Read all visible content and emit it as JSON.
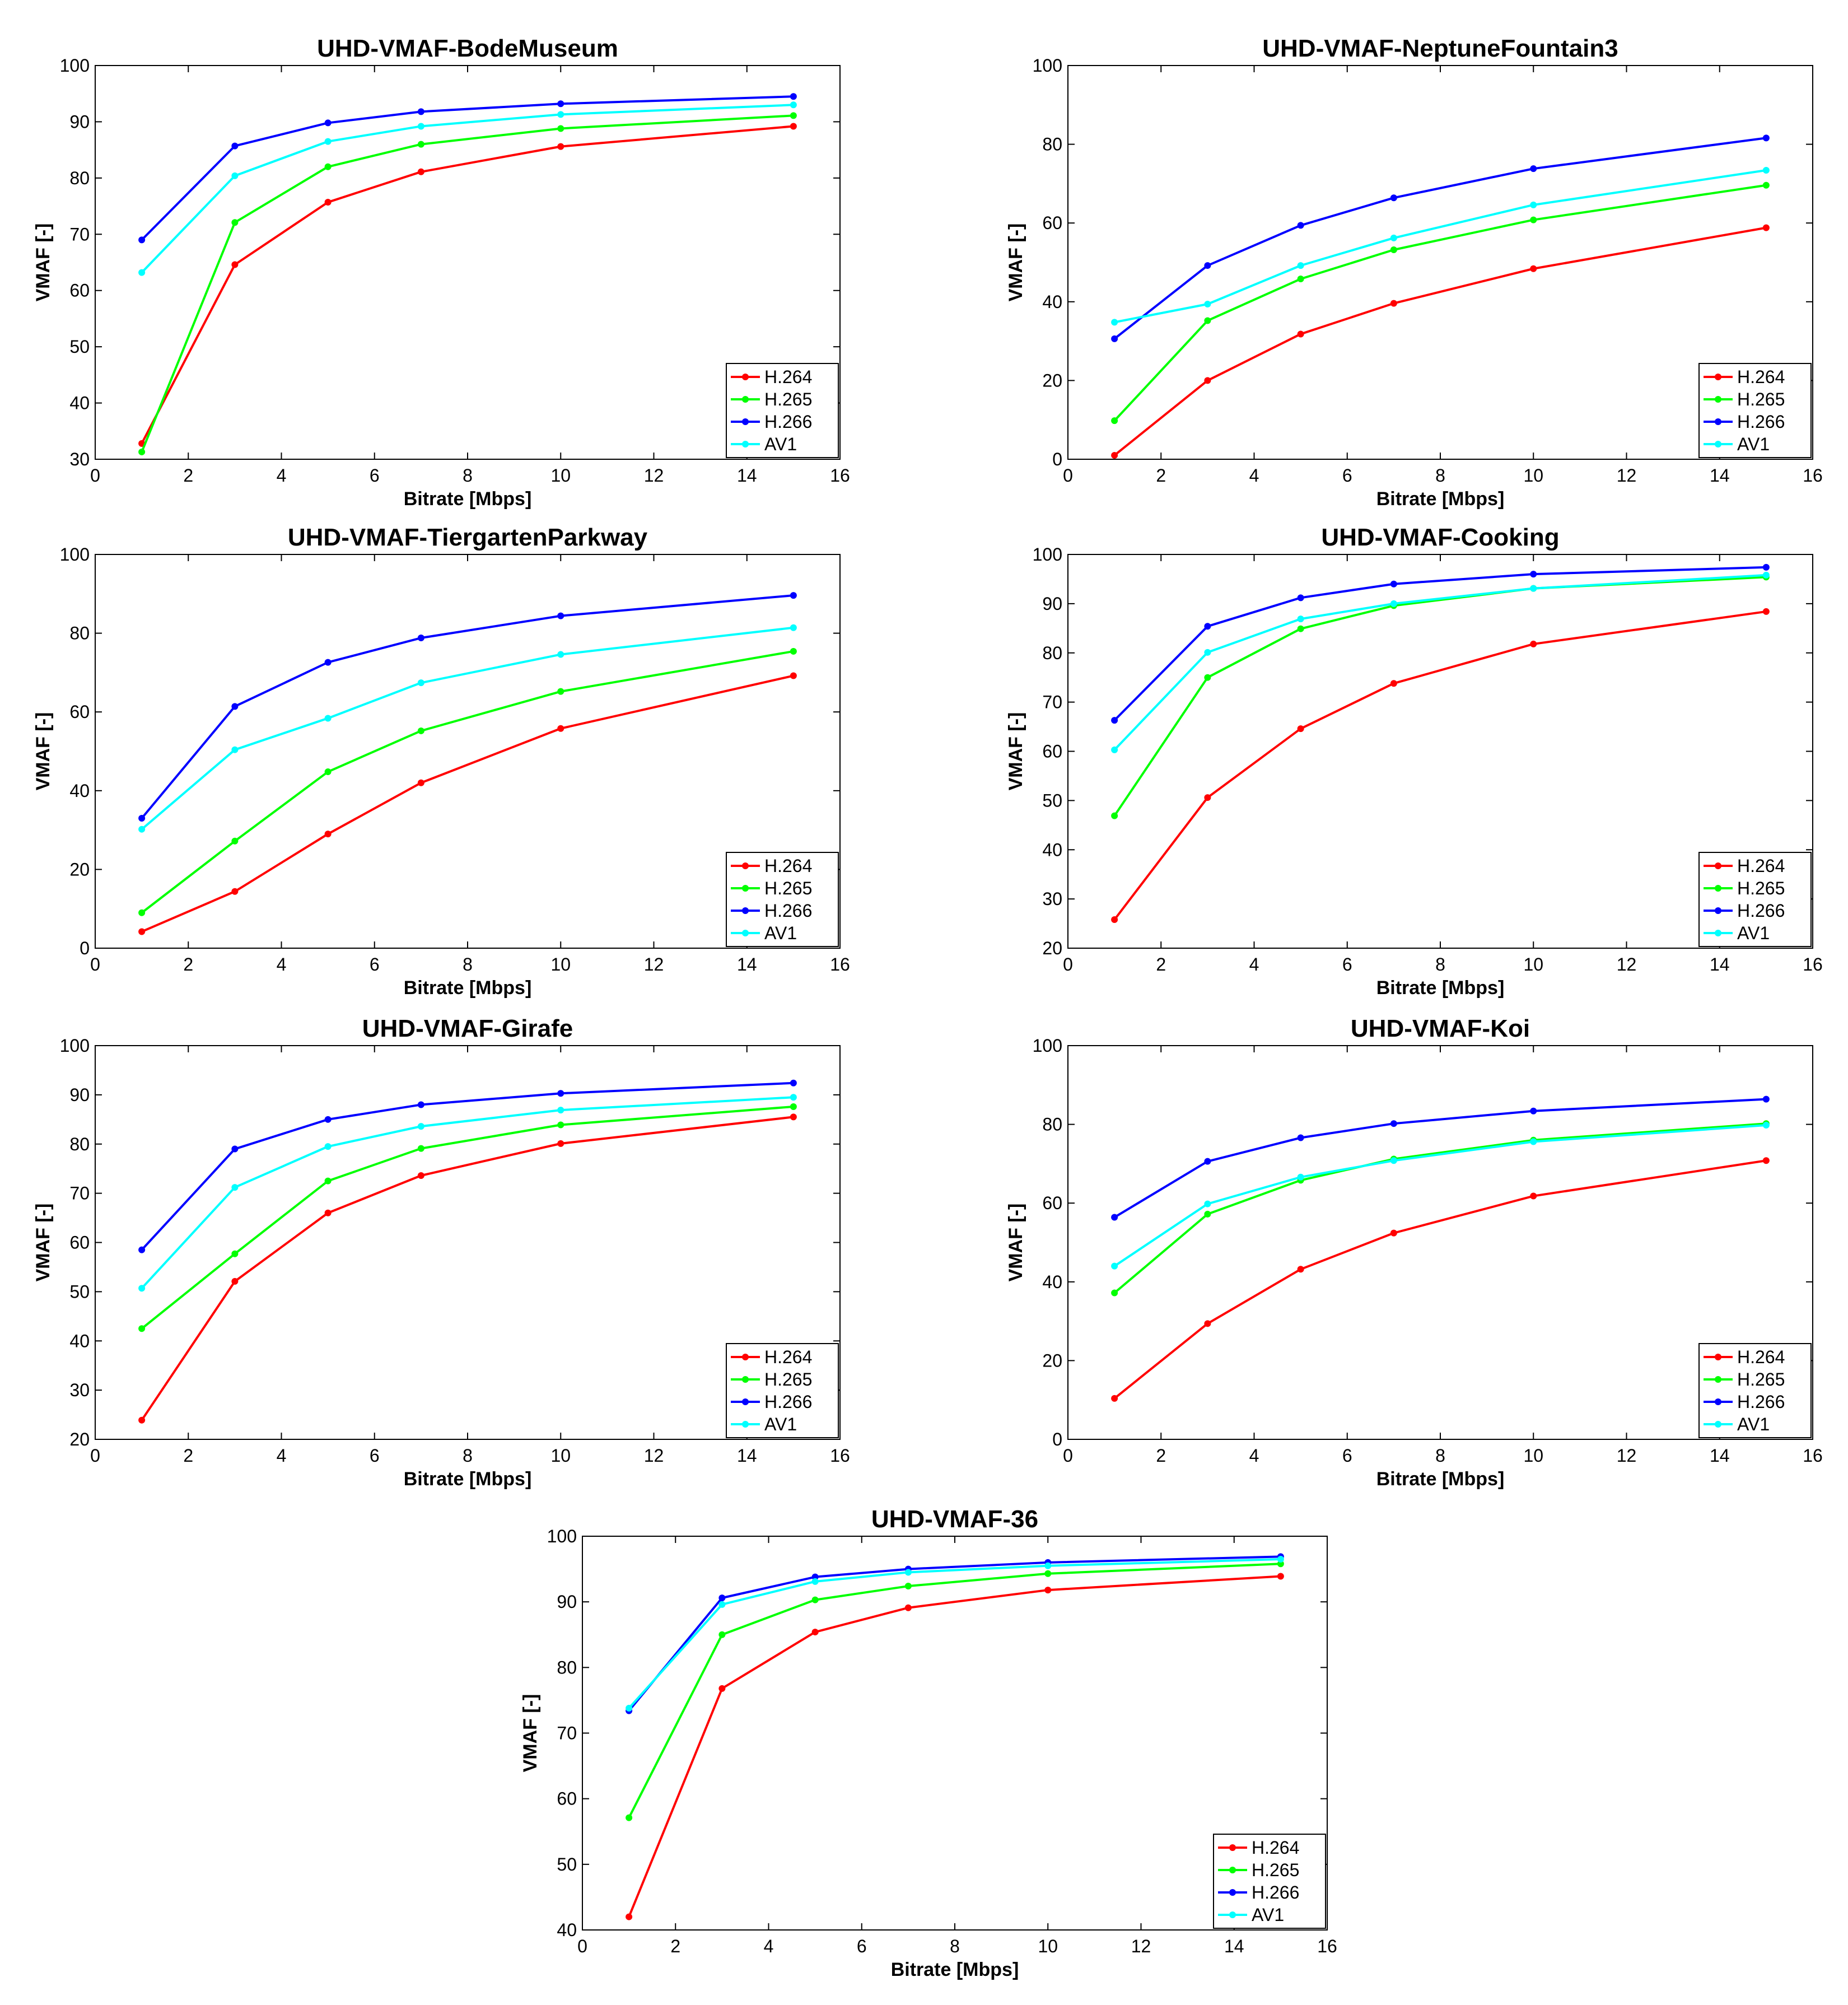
{
  "figure": {
    "background": "#ffffff",
    "legend_placement": "bottom-right",
    "grid": false
  },
  "series_colors": {
    "H.264": "#ff0000",
    "H.265": "#00ff00",
    "H.266": "#0000ff",
    "AV1": "#00ffff"
  },
  "chart_data": [
    {
      "type": "line",
      "title": "UHD-VMAF-BodeMuseum",
      "xlabel": "Bitrate [Mbps]",
      "ylabel": "VMAF [-]",
      "xlim": [
        0,
        16
      ],
      "ylim": [
        30,
        100
      ],
      "xticks": [
        0,
        2,
        4,
        6,
        8,
        10,
        12,
        14,
        16
      ],
      "yticks": [
        30,
        40,
        50,
        60,
        70,
        80,
        90,
        100
      ],
      "legend": "bottom-right",
      "x": [
        1,
        3,
        5,
        7,
        10,
        15
      ],
      "series": [
        {
          "name": "H.264",
          "values": [
            32.8,
            64.6,
            75.7,
            81.1,
            85.6,
            89.2
          ]
        },
        {
          "name": "H.265",
          "values": [
            31.3,
            72.1,
            82.0,
            86.0,
            88.8,
            91.1
          ]
        },
        {
          "name": "H.266",
          "values": [
            69.0,
            85.7,
            89.8,
            91.8,
            93.2,
            94.5
          ]
        },
        {
          "name": "AV1",
          "values": [
            63.2,
            80.4,
            86.5,
            89.2,
            91.3,
            93.0
          ]
        }
      ]
    },
    {
      "type": "line",
      "title": "UHD-VMAF-NeptuneFountain3",
      "xlabel": "Bitrate [Mbps]",
      "ylabel": "VMAF [-]",
      "xlim": [
        0,
        16
      ],
      "ylim": [
        0,
        100
      ],
      "xticks": [
        0,
        2,
        4,
        6,
        8,
        10,
        12,
        14,
        16
      ],
      "yticks": [
        0,
        20,
        40,
        60,
        80,
        100
      ],
      "legend": "bottom-right",
      "x": [
        1,
        3,
        5,
        7,
        10,
        15
      ],
      "series": [
        {
          "name": "H.264",
          "values": [
            1.0,
            20.0,
            31.8,
            39.6,
            48.4,
            58.8
          ]
        },
        {
          "name": "H.265",
          "values": [
            9.8,
            35.2,
            45.8,
            53.2,
            60.8,
            69.6
          ]
        },
        {
          "name": "H.266",
          "values": [
            30.6,
            49.2,
            59.4,
            66.4,
            73.8,
            81.6
          ]
        },
        {
          "name": "AV1",
          "values": [
            34.8,
            39.4,
            49.2,
            56.2,
            64.6,
            73.4
          ]
        }
      ]
    },
    {
      "type": "line",
      "title": "UHD-VMAF-TiergartenParkway",
      "xlabel": "Bitrate [Mbps]",
      "ylabel": "VMAF [-]",
      "xlim": [
        0,
        16
      ],
      "ylim": [
        0,
        100
      ],
      "xticks": [
        0,
        2,
        4,
        6,
        8,
        10,
        12,
        14,
        16
      ],
      "yticks": [
        0,
        20,
        40,
        60,
        80,
        100
      ],
      "legend": "bottom-right",
      "x": [
        1,
        3,
        5,
        7,
        10,
        15
      ],
      "series": [
        {
          "name": "H.264",
          "values": [
            4.2,
            14.4,
            29.0,
            42.0,
            55.8,
            69.2
          ]
        },
        {
          "name": "H.265",
          "values": [
            9.0,
            27.2,
            44.8,
            55.2,
            65.2,
            75.4
          ]
        },
        {
          "name": "H.266",
          "values": [
            33.0,
            61.4,
            72.6,
            78.8,
            84.4,
            89.6
          ]
        },
        {
          "name": "AV1",
          "values": [
            30.2,
            50.4,
            58.4,
            67.4,
            74.6,
            81.4
          ]
        }
      ]
    },
    {
      "type": "line",
      "title": "UHD-VMAF-Cooking",
      "xlabel": "Bitrate [Mbps]",
      "ylabel": "VMAF [-]",
      "xlim": [
        0,
        16
      ],
      "ylim": [
        20,
        100
      ],
      "xticks": [
        0,
        2,
        4,
        6,
        8,
        10,
        12,
        14,
        16
      ],
      "yticks": [
        20,
        30,
        40,
        50,
        60,
        70,
        80,
        90,
        100
      ],
      "legend": "bottom-right",
      "x": [
        1,
        3,
        5,
        7,
        10,
        15
      ],
      "series": [
        {
          "name": "H.264",
          "values": [
            25.8,
            50.6,
            64.6,
            73.8,
            81.8,
            88.4
          ]
        },
        {
          "name": "H.265",
          "values": [
            46.9,
            75.0,
            84.9,
            89.6,
            93.1,
            95.4
          ]
        },
        {
          "name": "H.266",
          "values": [
            66.3,
            85.4,
            91.2,
            94.0,
            96.0,
            97.4
          ]
        },
        {
          "name": "AV1",
          "values": [
            60.3,
            80.1,
            86.9,
            90.0,
            93.1,
            95.8
          ]
        }
      ]
    },
    {
      "type": "line",
      "title": "UHD-VMAF-Girafe",
      "xlabel": "Bitrate [Mbps]",
      "ylabel": "VMAF [-]",
      "xlim": [
        0,
        16
      ],
      "ylim": [
        20,
        100
      ],
      "xticks": [
        0,
        2,
        4,
        6,
        8,
        10,
        12,
        14,
        16
      ],
      "yticks": [
        20,
        30,
        40,
        50,
        60,
        70,
        80,
        90,
        100
      ],
      "legend": "bottom-right",
      "x": [
        1,
        3,
        5,
        7,
        10,
        15
      ],
      "series": [
        {
          "name": "H.264",
          "values": [
            23.9,
            52.1,
            66.0,
            73.6,
            80.1,
            85.5
          ]
        },
        {
          "name": "H.265",
          "values": [
            42.5,
            57.7,
            72.5,
            79.1,
            83.9,
            87.6
          ]
        },
        {
          "name": "H.266",
          "values": [
            58.5,
            79.0,
            85.0,
            88.0,
            90.3,
            92.4
          ]
        },
        {
          "name": "AV1",
          "values": [
            50.7,
            71.2,
            79.5,
            83.6,
            86.9,
            89.5
          ]
        }
      ]
    },
    {
      "type": "line",
      "title": "UHD-VMAF-Koi",
      "xlabel": "Bitrate [Mbps]",
      "ylabel": "VMAF [-]",
      "xlim": [
        0,
        16
      ],
      "ylim": [
        0,
        100
      ],
      "xticks": [
        0,
        2,
        4,
        6,
        8,
        10,
        12,
        14,
        16
      ],
      "yticks": [
        0,
        20,
        40,
        60,
        80,
        100
      ],
      "legend": "bottom-right",
      "x": [
        1,
        3,
        5,
        7,
        10,
        15
      ],
      "series": [
        {
          "name": "H.264",
          "values": [
            10.4,
            29.4,
            43.2,
            52.4,
            61.8,
            70.8
          ]
        },
        {
          "name": "H.265",
          "values": [
            37.2,
            57.2,
            65.8,
            71.2,
            76.0,
            80.2
          ]
        },
        {
          "name": "H.266",
          "values": [
            56.4,
            70.6,
            76.6,
            80.2,
            83.4,
            86.4
          ]
        },
        {
          "name": "AV1",
          "values": [
            44.0,
            59.8,
            66.6,
            70.8,
            75.6,
            79.8
          ]
        }
      ]
    },
    {
      "type": "line",
      "title": "UHD-VMAF-36",
      "xlabel": "Bitrate [Mbps]",
      "ylabel": "VMAF [-]",
      "xlim": [
        0,
        16
      ],
      "ylim": [
        40,
        100
      ],
      "xticks": [
        0,
        2,
        4,
        6,
        8,
        10,
        12,
        14,
        16
      ],
      "yticks": [
        40,
        50,
        60,
        70,
        80,
        90,
        100
      ],
      "legend": "bottom-right",
      "x": [
        1,
        3,
        5,
        7,
        10,
        15
      ],
      "series": [
        {
          "name": "H.264",
          "values": [
            42.0,
            76.8,
            85.4,
            89.1,
            91.8,
            93.9
          ]
        },
        {
          "name": "H.265",
          "values": [
            57.1,
            85.0,
            90.3,
            92.4,
            94.3,
            95.8
          ]
        },
        {
          "name": "H.266",
          "values": [
            73.4,
            90.6,
            93.8,
            95.0,
            96.0,
            96.9
          ]
        },
        {
          "name": "AV1",
          "values": [
            73.8,
            89.6,
            93.1,
            94.5,
            95.5,
            96.5
          ]
        }
      ]
    }
  ]
}
